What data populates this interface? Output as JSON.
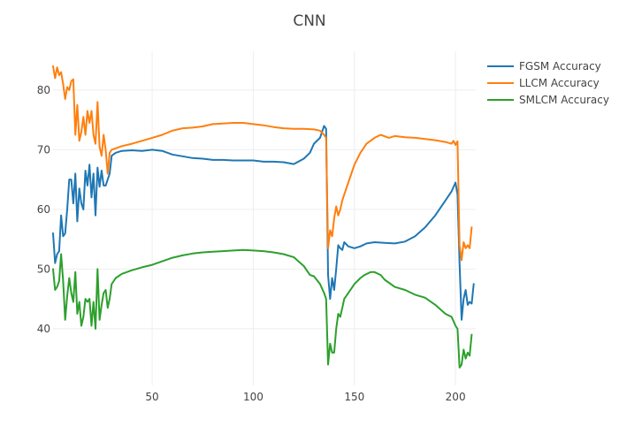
{
  "chart_data": {
    "type": "line",
    "title": "CNN",
    "xlabel": "",
    "ylabel": "",
    "xlim": [
      1,
      210
    ],
    "ylim": [
      30.5,
      86.5
    ],
    "xticks": [
      50,
      100,
      150,
      200
    ],
    "yticks": [
      40,
      50,
      60,
      70,
      80
    ],
    "grid": true,
    "legend": "top-right",
    "series": [
      {
        "name": "FGSM Accuracy",
        "color": "#1f77b4",
        "points": [
          [
            1,
            56.0
          ],
          [
            2,
            51.0
          ],
          [
            3,
            52.5
          ],
          [
            4,
            53.0
          ],
          [
            5,
            59.0
          ],
          [
            6,
            55.5
          ],
          [
            7,
            56.0
          ],
          [
            8,
            60.0
          ],
          [
            9,
            65.0
          ],
          [
            10,
            65.0
          ],
          [
            11,
            61.0
          ],
          [
            12,
            66.0
          ],
          [
            13,
            58.0
          ],
          [
            14,
            63.5
          ],
          [
            15,
            61.0
          ],
          [
            16,
            60.0
          ],
          [
            17,
            66.5
          ],
          [
            18,
            64.0
          ],
          [
            19,
            67.5
          ],
          [
            20,
            62.0
          ],
          [
            21,
            66.0
          ],
          [
            22,
            59.0
          ],
          [
            23,
            67.0
          ],
          [
            24,
            63.8
          ],
          [
            25,
            66.5
          ],
          [
            26,
            64.0
          ],
          [
            27,
            64.0
          ],
          [
            28,
            65.0
          ],
          [
            29,
            66.0
          ],
          [
            30,
            69.0
          ],
          [
            32,
            69.5
          ],
          [
            35,
            69.8
          ],
          [
            40,
            69.9
          ],
          [
            45,
            69.8
          ],
          [
            50,
            70.0
          ],
          [
            55,
            69.8
          ],
          [
            60,
            69.2
          ],
          [
            65,
            68.9
          ],
          [
            70,
            68.6
          ],
          [
            75,
            68.5
          ],
          [
            80,
            68.3
          ],
          [
            85,
            68.3
          ],
          [
            90,
            68.2
          ],
          [
            95,
            68.2
          ],
          [
            100,
            68.2
          ],
          [
            105,
            68.0
          ],
          [
            110,
            68.0
          ],
          [
            115,
            67.9
          ],
          [
            120,
            67.6
          ],
          [
            125,
            68.5
          ],
          [
            128,
            69.5
          ],
          [
            130,
            71.0
          ],
          [
            133,
            72.0
          ],
          [
            135,
            74.0
          ],
          [
            136,
            73.5
          ],
          [
            137,
            49.0
          ],
          [
            138,
            45.0
          ],
          [
            139,
            48.5
          ],
          [
            140,
            46.5
          ],
          [
            141,
            50.0
          ],
          [
            142,
            54.0
          ],
          [
            143,
            53.5
          ],
          [
            144,
            53.2
          ],
          [
            145,
            54.5
          ],
          [
            147,
            53.8
          ],
          [
            150,
            53.5
          ],
          [
            153,
            53.8
          ],
          [
            156,
            54.3
          ],
          [
            160,
            54.5
          ],
          [
            165,
            54.4
          ],
          [
            170,
            54.3
          ],
          [
            175,
            54.6
          ],
          [
            180,
            55.5
          ],
          [
            185,
            57.0
          ],
          [
            190,
            59.0
          ],
          [
            195,
            61.5
          ],
          [
            198,
            63.0
          ],
          [
            200,
            64.5
          ],
          [
            201,
            62.5
          ],
          [
            202,
            51.0
          ],
          [
            203,
            41.5
          ],
          [
            204,
            45.0
          ],
          [
            205,
            46.5
          ],
          [
            206,
            44.0
          ],
          [
            207,
            44.5
          ],
          [
            208,
            44.2
          ],
          [
            209,
            47.5
          ]
        ]
      },
      {
        "name": "LLCM Accuracy",
        "color": "#ff7f0e",
        "points": [
          [
            1,
            84.0
          ],
          [
            2,
            82.0
          ],
          [
            3,
            83.8
          ],
          [
            4,
            82.5
          ],
          [
            5,
            83.0
          ],
          [
            6,
            81.0
          ],
          [
            7,
            78.5
          ],
          [
            8,
            80.5
          ],
          [
            9,
            80.0
          ],
          [
            10,
            81.5
          ],
          [
            11,
            81.8
          ],
          [
            12,
            72.5
          ],
          [
            13,
            77.5
          ],
          [
            14,
            71.5
          ],
          [
            15,
            73.0
          ],
          [
            16,
            75.5
          ],
          [
            17,
            72.5
          ],
          [
            18,
            76.5
          ],
          [
            19,
            74.5
          ],
          [
            20,
            76.5
          ],
          [
            21,
            72.5
          ],
          [
            22,
            71.0
          ],
          [
            23,
            78.0
          ],
          [
            24,
            70.5
          ],
          [
            25,
            69.0
          ],
          [
            26,
            72.5
          ],
          [
            27,
            70.0
          ],
          [
            28,
            66.0
          ],
          [
            29,
            69.5
          ],
          [
            30,
            70.0
          ],
          [
            35,
            70.6
          ],
          [
            40,
            71.0
          ],
          [
            45,
            71.5
          ],
          [
            50,
            72.0
          ],
          [
            55,
            72.5
          ],
          [
            60,
            73.2
          ],
          [
            65,
            73.6
          ],
          [
            70,
            73.7
          ],
          [
            75,
            73.9
          ],
          [
            80,
            74.3
          ],
          [
            85,
            74.4
          ],
          [
            90,
            74.5
          ],
          [
            95,
            74.5
          ],
          [
            100,
            74.3
          ],
          [
            105,
            74.1
          ],
          [
            110,
            73.8
          ],
          [
            115,
            73.6
          ],
          [
            120,
            73.5
          ],
          [
            125,
            73.5
          ],
          [
            130,
            73.4
          ],
          [
            133,
            73.2
          ],
          [
            135,
            72.5
          ],
          [
            136,
            72.0
          ],
          [
            137,
            53.5
          ],
          [
            138,
            56.5
          ],
          [
            139,
            55.5
          ],
          [
            140,
            58.5
          ],
          [
            141,
            60.5
          ],
          [
            142,
            59.0
          ],
          [
            143,
            60.0
          ],
          [
            144,
            61.5
          ],
          [
            145,
            62.5
          ],
          [
            147,
            64.5
          ],
          [
            150,
            67.5
          ],
          [
            153,
            69.5
          ],
          [
            156,
            71.0
          ],
          [
            160,
            72.0
          ],
          [
            163,
            72.5
          ],
          [
            167,
            72.0
          ],
          [
            170,
            72.3
          ],
          [
            175,
            72.1
          ],
          [
            180,
            72.0
          ],
          [
            185,
            71.8
          ],
          [
            190,
            71.6
          ],
          [
            195,
            71.3
          ],
          [
            198,
            71.0
          ],
          [
            199,
            71.5
          ],
          [
            200,
            70.8
          ],
          [
            201,
            71.4
          ],
          [
            202,
            54.0
          ],
          [
            203,
            51.5
          ],
          [
            204,
            54.5
          ],
          [
            205,
            53.5
          ],
          [
            206,
            54.0
          ],
          [
            207,
            53.5
          ],
          [
            208,
            57.0
          ]
        ]
      },
      {
        "name": "SMLCM Accuracy",
        "color": "#2ca02c",
        "points": [
          [
            1,
            50.0
          ],
          [
            2,
            46.5
          ],
          [
            3,
            47.0
          ],
          [
            4,
            48.0
          ],
          [
            5,
            52.5
          ],
          [
            6,
            48.0
          ],
          [
            7,
            41.5
          ],
          [
            8,
            45.5
          ],
          [
            9,
            48.5
          ],
          [
            10,
            46.0
          ],
          [
            11,
            44.5
          ],
          [
            12,
            49.5
          ],
          [
            13,
            42.5
          ],
          [
            14,
            44.5
          ],
          [
            15,
            40.5
          ],
          [
            16,
            42.0
          ],
          [
            17,
            45.0
          ],
          [
            18,
            44.5
          ],
          [
            19,
            45.0
          ],
          [
            20,
            40.5
          ],
          [
            21,
            44.5
          ],
          [
            22,
            40.0
          ],
          [
            23,
            50.0
          ],
          [
            24,
            41.5
          ],
          [
            25,
            44.0
          ],
          [
            26,
            46.0
          ],
          [
            27,
            46.5
          ],
          [
            28,
            43.5
          ],
          [
            29,
            45.0
          ],
          [
            30,
            47.5
          ],
          [
            32,
            48.5
          ],
          [
            35,
            49.2
          ],
          [
            40,
            49.8
          ],
          [
            45,
            50.3
          ],
          [
            50,
            50.7
          ],
          [
            55,
            51.3
          ],
          [
            60,
            51.9
          ],
          [
            65,
            52.3
          ],
          [
            70,
            52.6
          ],
          [
            75,
            52.8
          ],
          [
            80,
            52.9
          ],
          [
            85,
            53.0
          ],
          [
            90,
            53.1
          ],
          [
            95,
            53.2
          ],
          [
            100,
            53.1
          ],
          [
            105,
            53.0
          ],
          [
            110,
            52.8
          ],
          [
            115,
            52.5
          ],
          [
            120,
            52.0
          ],
          [
            125,
            50.5
          ],
          [
            128,
            49.0
          ],
          [
            130,
            48.8
          ],
          [
            133,
            47.5
          ],
          [
            135,
            46.0
          ],
          [
            136,
            45.0
          ],
          [
            137,
            34.0
          ],
          [
            138,
            37.5
          ],
          [
            139,
            36.0
          ],
          [
            140,
            36.0
          ],
          [
            141,
            40.0
          ],
          [
            142,
            42.5
          ],
          [
            143,
            42.0
          ],
          [
            144,
            43.5
          ],
          [
            145,
            45.0
          ],
          [
            147,
            46.0
          ],
          [
            150,
            47.5
          ],
          [
            153,
            48.5
          ],
          [
            155,
            49.0
          ],
          [
            158,
            49.5
          ],
          [
            160,
            49.5
          ],
          [
            163,
            49.0
          ],
          [
            165,
            48.2
          ],
          [
            170,
            47.0
          ],
          [
            175,
            46.5
          ],
          [
            180,
            45.7
          ],
          [
            185,
            45.2
          ],
          [
            190,
            44.0
          ],
          [
            195,
            42.5
          ],
          [
            198,
            42.0
          ],
          [
            199,
            41.3
          ],
          [
            200,
            40.5
          ],
          [
            201,
            40.0
          ],
          [
            202,
            33.5
          ],
          [
            203,
            34.0
          ],
          [
            204,
            36.5
          ],
          [
            205,
            35.0
          ],
          [
            206,
            36.0
          ],
          [
            207,
            35.5
          ],
          [
            208,
            39.0
          ]
        ]
      }
    ]
  }
}
